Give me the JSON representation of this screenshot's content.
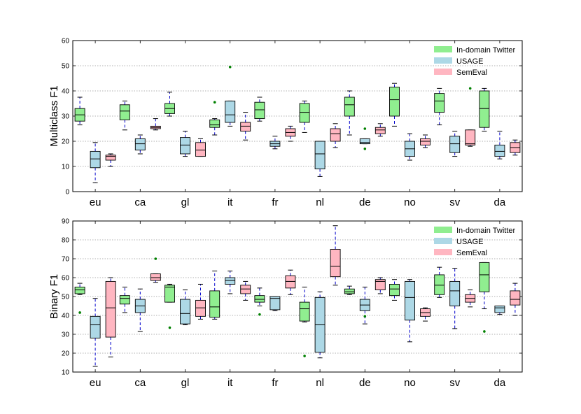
{
  "colors": {
    "indomain": "#90EE90",
    "usage": "#ADD8E6",
    "semeval": "#FFB6C1",
    "whisker": "#0000CC",
    "outlier": "#008000",
    "grid": "#999999"
  },
  "chart_data": [
    {
      "type": "box",
      "ylabel": "Multiclass F1",
      "xlabel": "",
      "ylim": [
        0,
        60
      ],
      "yticks": [
        "0",
        "10",
        "20",
        "30",
        "40",
        "50",
        "60"
      ],
      "grid": "horizontal dotted",
      "legend_position": "top-right",
      "categories": [
        "eu",
        "ca",
        "gl",
        "it",
        "fr",
        "nl",
        "de",
        "no",
        "sv",
        "da"
      ],
      "series": [
        {
          "name": "In-domain Twitter",
          "boxes": [
            {
              "min": 26.5,
              "q1": 28,
              "median": 30.5,
              "q3": 33,
              "max": 37.5,
              "outliers": []
            },
            {
              "min": 24.5,
              "q1": 28.5,
              "median": 32,
              "q3": 34.5,
              "max": 36,
              "outliers": []
            },
            {
              "min": 30,
              "q1": 31,
              "median": 33,
              "q3": 35,
              "max": 39.5,
              "outliers": []
            },
            {
              "min": 22.5,
              "q1": 25.5,
              "median": 26.5,
              "q3": 28.5,
              "max": 29,
              "outliers": [
                35.5
              ]
            },
            {
              "min": 28,
              "q1": 29,
              "median": 32.5,
              "q3": 35.5,
              "max": 37.5,
              "outliers": []
            },
            {
              "min": 23.5,
              "q1": 27.5,
              "median": 31.5,
              "q3": 35,
              "max": 36,
              "outliers": []
            },
            {
              "min": 22.5,
              "q1": 30,
              "median": 34.5,
              "q3": 37.5,
              "max": 40,
              "outliers": []
            },
            {
              "min": 26,
              "q1": 30,
              "median": 36.5,
              "q3": 41.5,
              "max": 43,
              "outliers": []
            },
            {
              "min": 26.5,
              "q1": 31.5,
              "median": 36,
              "q3": 39,
              "max": 41,
              "outliers": []
            },
            {
              "min": 24,
              "q1": 25.5,
              "median": 33,
              "q3": 40,
              "max": 41,
              "outliers": []
            }
          ]
        },
        {
          "name": "USAGE",
          "boxes": [
            {
              "min": 3.5,
              "q1": 9.5,
              "median": 13,
              "q3": 16,
              "max": 19.5,
              "outliers": []
            },
            {
              "min": 15,
              "q1": 16.5,
              "median": 19,
              "q3": 21,
              "max": 22.5,
              "outliers": []
            },
            {
              "min": 14,
              "q1": 15,
              "median": 18.5,
              "q3": 21.5,
              "max": 24,
              "outliers": []
            },
            {
              "min": 26,
              "q1": 27.5,
              "median": 30.5,
              "q3": 36,
              "max": 36,
              "outliers": [
                49.5
              ]
            },
            {
              "min": 17,
              "q1": 18,
              "median": 19,
              "q3": 20,
              "max": 22,
              "outliers": []
            },
            {
              "min": 6,
              "q1": 9,
              "median": 15,
              "q3": 20,
              "max": 20,
              "outliers": []
            },
            {
              "min": 19,
              "q1": 19,
              "median": 19.5,
              "q3": 21,
              "max": 21,
              "outliers": [
                25,
                17
              ]
            },
            {
              "min": 12.5,
              "q1": 14,
              "median": 17,
              "q3": 20,
              "max": 23,
              "outliers": []
            },
            {
              "min": 14,
              "q1": 15.5,
              "median": 19,
              "q3": 22,
              "max": 24,
              "outliers": []
            },
            {
              "min": 13,
              "q1": 14,
              "median": 16,
              "q3": 18.5,
              "max": 24,
              "outliers": []
            }
          ]
        },
        {
          "name": "SemEval",
          "boxes": [
            {
              "min": 10,
              "q1": 12.5,
              "median": 14,
              "q3": 14.5,
              "max": 15,
              "outliers": []
            },
            {
              "min": 24.5,
              "q1": 25,
              "median": 25.5,
              "q3": 26,
              "max": 29,
              "outliers": []
            },
            {
              "min": 14,
              "q1": 14,
              "median": 16.5,
              "q3": 19.5,
              "max": 21,
              "outliers": []
            },
            {
              "min": 20.5,
              "q1": 24,
              "median": 26,
              "q3": 27.5,
              "max": 31.5,
              "outliers": []
            },
            {
              "min": 20,
              "q1": 22,
              "median": 23.5,
              "q3": 25,
              "max": 26,
              "outliers": []
            },
            {
              "min": 17.5,
              "q1": 20,
              "median": 23,
              "q3": 25,
              "max": 27,
              "outliers": []
            },
            {
              "min": 22,
              "q1": 23,
              "median": 24.5,
              "q3": 25.5,
              "max": 27,
              "outliers": []
            },
            {
              "min": 17.5,
              "q1": 18.5,
              "median": 20,
              "q3": 21,
              "max": 22.5,
              "outliers": []
            },
            {
              "min": 18,
              "q1": 18.5,
              "median": 19,
              "q3": 24.5,
              "max": 24.5,
              "outliers": [
                41
              ]
            },
            {
              "min": 14.5,
              "q1": 15.5,
              "median": 17.5,
              "q3": 19.5,
              "max": 20.5,
              "outliers": []
            }
          ]
        }
      ]
    },
    {
      "type": "box",
      "ylabel": "Binary F1",
      "xlabel": "",
      "ylim": [
        10,
        90
      ],
      "yticks": [
        "10",
        "20",
        "30",
        "40",
        "50",
        "60",
        "70",
        "80",
        "90"
      ],
      "grid": "horizontal dotted",
      "legend_position": "top-right",
      "categories": [
        "eu",
        "ca",
        "gl",
        "it",
        "fr",
        "nl",
        "de",
        "no",
        "sv",
        "da"
      ],
      "series": [
        {
          "name": "In-domain Twitter",
          "boxes": [
            {
              "min": 51,
              "q1": 51.5,
              "median": 53.5,
              "q3": 55,
              "max": 57,
              "outliers": [
                41.5
              ]
            },
            {
              "min": 41.5,
              "q1": 46,
              "median": 49,
              "q3": 50.5,
              "max": 55,
              "outliers": []
            },
            {
              "min": 47,
              "q1": 47,
              "median": 55,
              "q3": 56,
              "max": 56.5,
              "outliers": [
                33.5
              ]
            },
            {
              "min": 38,
              "q1": 39,
              "median": 44.5,
              "q3": 53,
              "max": 63.5,
              "outliers": []
            },
            {
              "min": 45,
              "q1": 47,
              "median": 48.5,
              "q3": 50.5,
              "max": 54.5,
              "outliers": [
                40.5
              ]
            },
            {
              "min": 36.5,
              "q1": 37,
              "median": 43.5,
              "q3": 47,
              "max": 55,
              "outliers": [
                18.5
              ]
            },
            {
              "min": 51,
              "q1": 51.5,
              "median": 52.5,
              "q3": 54,
              "max": 55.5,
              "outliers": []
            },
            {
              "min": 48,
              "q1": 50.5,
              "median": 54,
              "q3": 56.5,
              "max": 59,
              "outliers": []
            },
            {
              "min": 49.5,
              "q1": 51,
              "median": 56,
              "q3": 61.5,
              "max": 65.5,
              "outliers": []
            },
            {
              "min": 43.5,
              "q1": 52.5,
              "median": 61.5,
              "q3": 68,
              "max": 68,
              "outliers": [
                31.5
              ]
            }
          ]
        },
        {
          "name": "USAGE",
          "boxes": [
            {
              "min": 13,
              "q1": 28,
              "median": 35,
              "q3": 39.5,
              "max": 49,
              "outliers": []
            },
            {
              "min": 31.5,
              "q1": 41.5,
              "median": 45,
              "q3": 48.5,
              "max": 54,
              "outliers": []
            },
            {
              "min": 35,
              "q1": 35.5,
              "median": 41,
              "q3": 48.5,
              "max": 53.5,
              "outliers": []
            },
            {
              "min": 51.5,
              "q1": 56.5,
              "median": 58.5,
              "q3": 60,
              "max": 63.5,
              "outliers": []
            },
            {
              "min": 42.5,
              "q1": 43,
              "median": 49,
              "q3": 50,
              "max": 50,
              "outliers": []
            },
            {
              "min": 17.5,
              "q1": 20.5,
              "median": 35,
              "q3": 49.5,
              "max": 52.5,
              "outliers": []
            },
            {
              "min": 35.5,
              "q1": 42.5,
              "median": 45.5,
              "q3": 48.5,
              "max": 55,
              "outliers": [
                39.5
              ]
            },
            {
              "min": 26,
              "q1": 37.5,
              "median": 49.5,
              "q3": 58,
              "max": 59,
              "outliers": []
            },
            {
              "min": 33,
              "q1": 45,
              "median": 53,
              "q3": 58,
              "max": 65,
              "outliers": []
            },
            {
              "min": 40.5,
              "q1": 41.5,
              "median": 44,
              "q3": 45,
              "max": 45,
              "outliers": []
            }
          ]
        },
        {
          "name": "SemEval",
          "boxes": [
            {
              "min": 18,
              "q1": 28.5,
              "median": 44,
              "q3": 58,
              "max": 60,
              "outliers": []
            },
            {
              "min": 57.5,
              "q1": 58.5,
              "median": 60,
              "q3": 62,
              "max": 62,
              "outliers": [
                70
              ]
            },
            {
              "min": 38,
              "q1": 39.5,
              "median": 44,
              "q3": 48,
              "max": 56.5,
              "outliers": []
            },
            {
              "min": 48,
              "q1": 51.5,
              "median": 54,
              "q3": 56,
              "max": 58,
              "outliers": []
            },
            {
              "min": 51,
              "q1": 54.5,
              "median": 58,
              "q3": 61,
              "max": 64,
              "outliers": []
            },
            {
              "min": 56,
              "q1": 60.5,
              "median": 66,
              "q3": 75,
              "max": 87.5,
              "outliers": []
            },
            {
              "min": 51.5,
              "q1": 53.5,
              "median": 58,
              "q3": 59,
              "max": 60,
              "outliers": []
            },
            {
              "min": 37,
              "q1": 39.5,
              "median": 41.5,
              "q3": 43.5,
              "max": 44,
              "outliers": []
            },
            {
              "min": 44.5,
              "q1": 47,
              "median": 49,
              "q3": 51,
              "max": 53.5,
              "outliers": []
            },
            {
              "min": 40,
              "q1": 45.5,
              "median": 48.5,
              "q3": 53,
              "max": 57,
              "outliers": []
            }
          ]
        }
      ]
    }
  ]
}
